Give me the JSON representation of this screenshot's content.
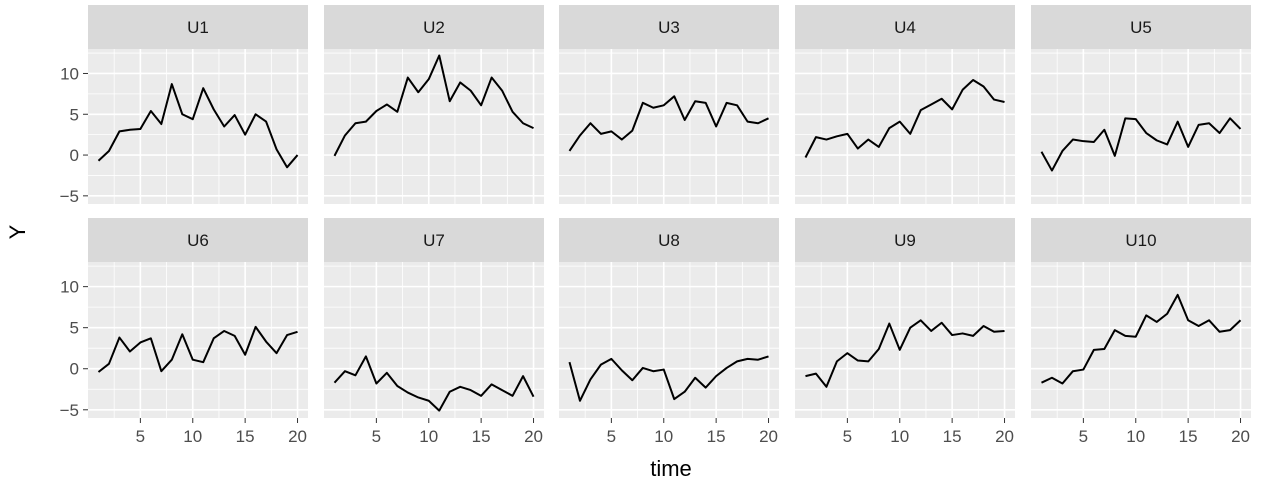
{
  "chart_data": {
    "type": "line",
    "layout": "facet-grid 2 rows x 5 columns",
    "xlabel": "time",
    "ylabel": "Y",
    "xlim": [
      0,
      21
    ],
    "ylim": [
      -6,
      13
    ],
    "x_ticks": [
      5,
      10,
      15,
      20
    ],
    "y_ticks": [
      -5,
      0,
      5,
      10
    ],
    "grid": true,
    "x": [
      1,
      2,
      3,
      4,
      5,
      6,
      7,
      8,
      9,
      10,
      11,
      12,
      13,
      14,
      15,
      16,
      17,
      18,
      19,
      20
    ],
    "line_color": "#000000",
    "panel_background": "#ebebeb",
    "strip_background": "#d9d9d9",
    "gridline_color": "#ffffff",
    "series": [
      {
        "name": "U1",
        "values": [
          -0.7,
          0.5,
          2.9,
          3.1,
          3.2,
          5.4,
          3.8,
          8.7,
          5.0,
          4.4,
          8.2,
          5.6,
          3.5,
          4.9,
          2.5,
          5.0,
          4.1,
          0.7,
          -1.5,
          0.0
        ]
      },
      {
        "name": "U2",
        "values": [
          -0.1,
          2.4,
          3.9,
          4.1,
          5.4,
          6.2,
          5.3,
          9.5,
          7.7,
          9.3,
          12.2,
          6.6,
          8.9,
          7.9,
          6.1,
          9.5,
          7.9,
          5.3,
          3.9,
          3.3
        ]
      },
      {
        "name": "U3",
        "values": [
          0.5,
          2.4,
          3.9,
          2.6,
          2.9,
          1.9,
          3.0,
          6.4,
          5.8,
          6.1,
          7.2,
          4.3,
          6.6,
          6.4,
          3.5,
          6.4,
          6.1,
          4.1,
          3.9,
          4.5
        ]
      },
      {
        "name": "U4",
        "values": [
          -0.3,
          2.2,
          1.9,
          2.3,
          2.6,
          0.8,
          1.9,
          1.0,
          3.3,
          4.1,
          2.6,
          5.5,
          6.2,
          6.9,
          5.6,
          8.0,
          9.2,
          8.4,
          6.8,
          6.5
        ]
      },
      {
        "name": "U5",
        "values": [
          0.4,
          -1.9,
          0.5,
          1.9,
          1.7,
          1.6,
          3.1,
          -0.1,
          4.5,
          4.4,
          2.7,
          1.8,
          1.3,
          4.1,
          1.0,
          3.7,
          3.9,
          2.7,
          4.5,
          3.2
        ]
      },
      {
        "name": "U6",
        "values": [
          -0.4,
          0.6,
          3.8,
          2.1,
          3.2,
          3.7,
          -0.3,
          1.1,
          4.2,
          1.1,
          0.8,
          3.7,
          4.6,
          4.0,
          1.7,
          5.1,
          3.3,
          1.9,
          4.1,
          4.5
        ]
      },
      {
        "name": "U7",
        "values": [
          -1.7,
          -0.3,
          -0.8,
          1.5,
          -1.8,
          -0.5,
          -2.1,
          -2.9,
          -3.5,
          -3.9,
          -5.1,
          -2.8,
          -2.2,
          -2.6,
          -3.3,
          -1.9,
          -2.6,
          -3.3,
          -0.9,
          -3.4
        ]
      },
      {
        "name": "U8",
        "values": [
          0.8,
          -3.9,
          -1.3,
          0.5,
          1.2,
          -0.2,
          -1.4,
          0.1,
          -0.3,
          -0.1,
          -3.7,
          -2.8,
          -1.1,
          -2.3,
          -0.9,
          0.1,
          0.9,
          1.2,
          1.1,
          1.5
        ]
      },
      {
        "name": "U9",
        "values": [
          -0.9,
          -0.6,
          -2.2,
          0.9,
          1.9,
          1.0,
          0.9,
          2.4,
          5.5,
          2.3,
          5.0,
          5.9,
          4.6,
          5.6,
          4.1,
          4.3,
          4.0,
          5.2,
          4.5,
          4.6
        ]
      },
      {
        "name": "U10",
        "values": [
          -1.7,
          -1.1,
          -1.8,
          -0.3,
          -0.1,
          2.3,
          2.4,
          4.7,
          4.0,
          3.9,
          6.5,
          5.7,
          6.7,
          9.0,
          5.9,
          5.2,
          5.9,
          4.5,
          4.7,
          5.9
        ]
      }
    ]
  }
}
